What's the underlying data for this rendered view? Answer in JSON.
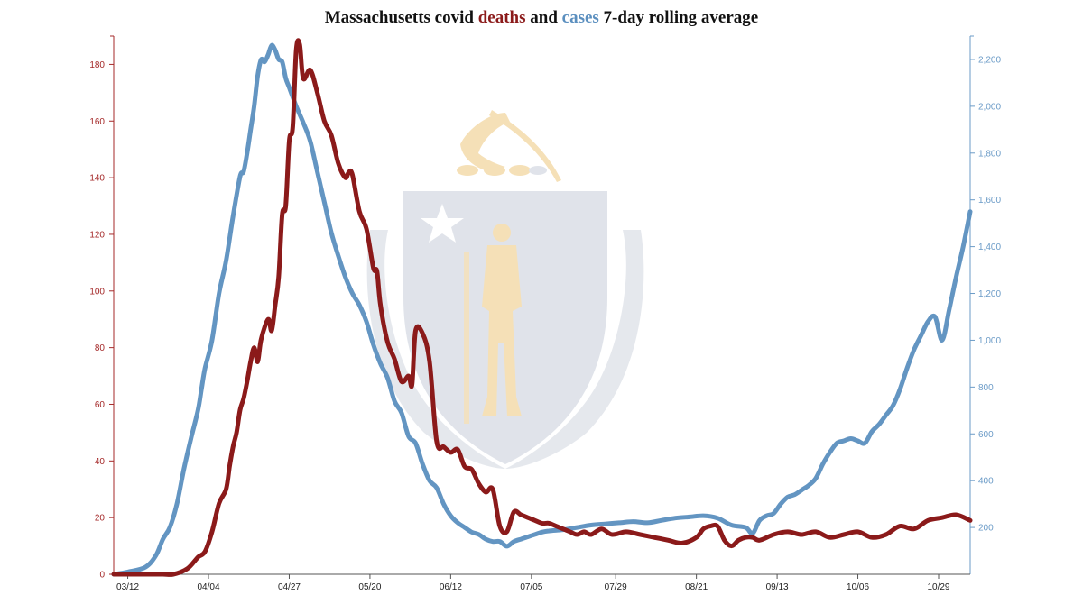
{
  "chart_data": {
    "type": "line",
    "title": {
      "prefix": "Massachusetts covid ",
      "deaths_word": "deaths",
      "middle": " and ",
      "cases_word": "cases",
      "suffix": " 7-day rolling average"
    },
    "colors": {
      "deaths": "#8b1a1a",
      "cases": "#5b8fbf",
      "left_axis": "#a52a2a",
      "right_axis": "#6b9bc7",
      "emblem_blue": "#dde1e8",
      "emblem_gold": "#f5ddb0"
    },
    "x_ticks": [
      "03/12",
      "04/04",
      "04/27",
      "05/20",
      "06/12",
      "07/05",
      "07/29",
      "08/21",
      "09/13",
      "10/06",
      "10/29"
    ],
    "x_tick_days": [
      0,
      23,
      46,
      69,
      92,
      115,
      139,
      162,
      185,
      208,
      231
    ],
    "xlim": [
      -4,
      240
    ],
    "left_axis": {
      "ylim": [
        0,
        190
      ],
      "ticks": [
        "0",
        "20",
        "40",
        "60",
        "80",
        "100",
        "120",
        "140",
        "160",
        "180"
      ],
      "tick_values": [
        0,
        20,
        40,
        60,
        80,
        100,
        120,
        140,
        160,
        180
      ]
    },
    "right_axis": {
      "ylim": [
        0,
        2300
      ],
      "ticks": [
        "200",
        "400",
        "600",
        "800",
        "1,000",
        "1,200",
        "1,400",
        "1,600",
        "1,800",
        "2,000",
        "2,200"
      ],
      "tick_values": [
        200,
        400,
        600,
        800,
        1000,
        1200,
        1400,
        1600,
        1800,
        2000,
        2200
      ]
    },
    "series": [
      {
        "key": "deaths",
        "axis": "left",
        "x": [
          -4,
          0,
          5,
          10,
          13,
          17,
          20,
          22,
          24,
          26,
          28,
          29,
          30,
          31,
          32,
          33,
          34,
          35,
          36,
          37,
          38,
          40,
          41,
          42,
          43,
          44,
          45,
          46,
          47,
          48,
          49,
          50,
          52,
          54,
          56,
          58,
          60,
          62,
          63,
          64,
          66,
          68,
          70,
          71,
          72,
          74,
          76,
          78,
          80,
          81,
          82,
          84,
          86,
          88,
          90,
          92,
          94,
          96,
          98,
          100,
          102,
          104,
          106,
          108,
          110,
          112,
          114,
          116,
          118,
          120,
          122,
          124,
          126,
          128,
          130,
          132,
          135,
          138,
          142,
          146,
          150,
          154,
          158,
          162,
          164,
          166,
          168,
          170,
          172,
          174,
          176,
          178,
          180,
          184,
          188,
          192,
          196,
          200,
          204,
          208,
          212,
          216,
          220,
          224,
          228,
          232,
          236,
          240
        ],
        "values": [
          0,
          0,
          0,
          0,
          0,
          2,
          6,
          8,
          15,
          25,
          30,
          38,
          45,
          50,
          58,
          62,
          68,
          75,
          80,
          75,
          83,
          90,
          86,
          95,
          105,
          127,
          130,
          153,
          158,
          185,
          187,
          175,
          178,
          170,
          160,
          155,
          145,
          140,
          142,
          141,
          128,
          122,
          108,
          107,
          95,
          82,
          76,
          68,
          70,
          67,
          86,
          85,
          75,
          47,
          45,
          43,
          44,
          38,
          37,
          32,
          29,
          30,
          17,
          15,
          22,
          21,
          20,
          19,
          18,
          18,
          17,
          16,
          15,
          14,
          15,
          14,
          16,
          14,
          15,
          14,
          13,
          12,
          11,
          13,
          16,
          17,
          17,
          12,
          10,
          12,
          13,
          13,
          12,
          14,
          15,
          14,
          15,
          13,
          14,
          15,
          13,
          14,
          17,
          16,
          19,
          20,
          21,
          19
        ]
      },
      {
        "key": "cases",
        "axis": "right",
        "x": [
          -4,
          0,
          5,
          8,
          10,
          12,
          14,
          16,
          18,
          20,
          21,
          22,
          24,
          26,
          28,
          30,
          32,
          33,
          34,
          35,
          36,
          37,
          38,
          39,
          40,
          41,
          42,
          43,
          44,
          45,
          46,
          48,
          50,
          52,
          54,
          56,
          58,
          60,
          62,
          64,
          66,
          68,
          70,
          72,
          74,
          76,
          78,
          80,
          82,
          84,
          86,
          88,
          90,
          92,
          94,
          96,
          98,
          100,
          102,
          104,
          106,
          108,
          110,
          112,
          114,
          116,
          118,
          120,
          124,
          128,
          132,
          136,
          140,
          144,
          148,
          152,
          156,
          160,
          164,
          168,
          172,
          176,
          178,
          180,
          182,
          184,
          186,
          188,
          190,
          192,
          194,
          196,
          198,
          200,
          202,
          204,
          206,
          208,
          210,
          212,
          214,
          216,
          218,
          220,
          222,
          224,
          226,
          228,
          230,
          232,
          234,
          236,
          238,
          240
        ],
        "values": [
          0,
          10,
          30,
          80,
          150,
          200,
          300,
          450,
          580,
          700,
          790,
          880,
          1000,
          1200,
          1340,
          1530,
          1700,
          1720,
          1800,
          1900,
          2000,
          2130,
          2200,
          2190,
          2220,
          2260,
          2240,
          2200,
          2190,
          2120,
          2080,
          2000,
          1930,
          1850,
          1720,
          1590,
          1460,
          1360,
          1270,
          1200,
          1150,
          1080,
          980,
          900,
          840,
          740,
          690,
          590,
          560,
          470,
          400,
          370,
          300,
          250,
          220,
          200,
          180,
          170,
          150,
          140,
          140,
          120,
          140,
          150,
          160,
          170,
          180,
          185,
          190,
          200,
          210,
          215,
          220,
          225,
          220,
          230,
          240,
          245,
          250,
          240,
          210,
          200,
          175,
          230,
          250,
          260,
          300,
          330,
          340,
          360,
          380,
          410,
          470,
          520,
          560,
          570,
          580,
          570,
          560,
          610,
          640,
          680,
          720,
          790,
          880,
          960,
          1020,
          1080,
          1100,
          1000,
          1130,
          1270,
          1400,
          1550
        ]
      }
    ]
  }
}
